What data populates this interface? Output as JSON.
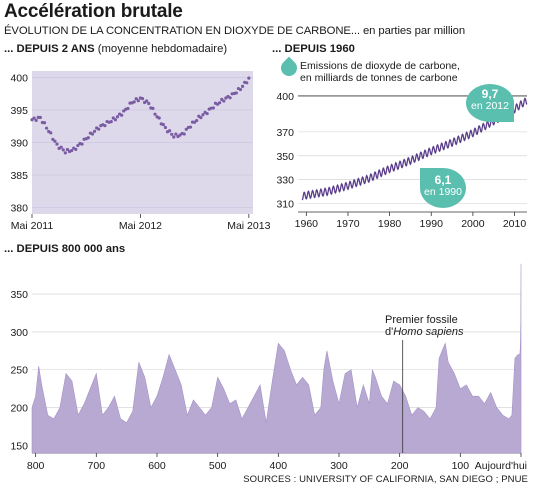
{
  "header": {
    "title": "Accélération brutale",
    "subtitle": "ÉVOLUTION DE LA CONCENTRATION EN DIOXYDE DE CARBONE... en parties par million"
  },
  "panels": {
    "p1": {
      "heading_bold": "... DEPUIS 2 ANS",
      "heading_rest": " (moyenne hebdomadaire)"
    },
    "p2": {
      "heading_bold": "... DEPUIS 1960",
      "legend_line1": "Emissions de dioxyde de carbone,",
      "legend_line2": "en milliards de tonnes de carbone",
      "bubble_2012_value": "9,7",
      "bubble_2012_label": "en 2012",
      "bubble_1990_value": "6,1",
      "bubble_1990_label": "en 1990"
    },
    "p3": {
      "heading_bold": "... DEPUIS 800 000 ans",
      "annotation_line1": "Premier fossile",
      "annotation_line2": "d'Homo sapiens"
    }
  },
  "footer": {
    "sources": "SOURCES : UNIVERSITY OF CALIFORNIA, SAN DIEGO ; PNUE"
  },
  "colors": {
    "fill": "#ddd8ea",
    "dots": "#7a5ca3",
    "keeling": "#5a3d8a",
    "area": "#b8a9d3",
    "teal": "#5bbfb0"
  },
  "chart_data": [
    {
      "type": "scatter",
      "title": "... DEPUIS 2 ANS (moyenne hebdomadaire)",
      "x_tick_labels": [
        "Mai 2011",
        "Mai 2012",
        "Mai 2013"
      ],
      "y_ticks": [
        380,
        385,
        390,
        395,
        400
      ],
      "ylim": [
        379,
        401
      ],
      "x_unit": "weeks since May 2011",
      "xlim": [
        0,
        106
      ],
      "x": [
        0,
        4,
        8,
        12,
        16,
        20,
        24,
        28,
        32,
        36,
        40,
        44,
        48,
        52,
        56,
        60,
        64,
        68,
        72,
        76,
        80,
        84,
        88,
        92,
        96,
        100,
        104
      ],
      "values": [
        393.5,
        393.8,
        391.8,
        389.6,
        388.6,
        388.9,
        390.0,
        391.2,
        392.3,
        393.0,
        393.7,
        394.7,
        396.2,
        396.8,
        396.0,
        394.0,
        392.2,
        391.0,
        391.2,
        392.6,
        393.8,
        394.7,
        395.8,
        396.6,
        397.3,
        398.3,
        399.8
      ]
    },
    {
      "type": "line",
      "title": "... DEPUIS 1960",
      "x_ticks": [
        1960,
        1970,
        1980,
        1990,
        2000,
        2010
      ],
      "y_ticks": [
        310,
        330,
        350,
        370,
        400
      ],
      "xlim": [
        1958,
        2013
      ],
      "ylim": [
        303,
        405
      ],
      "x": [
        1959,
        1960,
        1965,
        1970,
        1975,
        1980,
        1985,
        1990,
        1995,
        2000,
        2005,
        2010,
        2012,
        2013
      ],
      "values": [
        316,
        317,
        320,
        325,
        331,
        339,
        346,
        354,
        361,
        369,
        379,
        389,
        394,
        396
      ],
      "seasonal_amplitude_ppm": 3,
      "annotations": [
        {
          "year": 2012,
          "emissions_GtC": 9.7
        },
        {
          "year": 1990,
          "emissions_GtC": 6.1
        }
      ]
    },
    {
      "type": "area",
      "title": "... DEPUIS 800 000 ans",
      "x_ticks": [
        "800",
        "700",
        "600",
        "500",
        "400",
        "300",
        "200",
        "100",
        "Aujourd'hui"
      ],
      "x_unit": "thousand years before present",
      "xlim": [
        806,
        0
      ],
      "y_ticks": [
        150,
        200,
        250,
        300,
        350
      ],
      "ylim": [
        140,
        395
      ],
      "x": [
        806,
        800,
        795,
        790,
        780,
        770,
        760,
        750,
        740,
        730,
        720,
        710,
        700,
        690,
        680,
        670,
        660,
        650,
        640,
        630,
        620,
        610,
        600,
        590,
        580,
        570,
        560,
        550,
        540,
        530,
        520,
        510,
        500,
        490,
        480,
        470,
        460,
        450,
        440,
        430,
        420,
        410,
        400,
        390,
        380,
        370,
        360,
        350,
        340,
        330,
        325,
        320,
        310,
        300,
        290,
        280,
        270,
        260,
        250,
        245,
        240,
        230,
        220,
        210,
        200,
        190,
        180,
        170,
        160,
        150,
        140,
        135,
        130,
        125,
        120,
        110,
        100,
        90,
        80,
        70,
        60,
        50,
        40,
        30,
        20,
        15,
        10,
        5,
        2,
        1,
        0.3,
        0
      ],
      "values": [
        200,
        215,
        255,
        230,
        190,
        185,
        200,
        245,
        235,
        190,
        205,
        225,
        245,
        190,
        200,
        215,
        185,
        180,
        195,
        260,
        240,
        200,
        215,
        240,
        270,
        250,
        230,
        190,
        210,
        200,
        190,
        200,
        240,
        225,
        205,
        210,
        185,
        200,
        215,
        230,
        180,
        235,
        285,
        275,
        250,
        230,
        240,
        230,
        190,
        200,
        250,
        275,
        235,
        205,
        245,
        250,
        200,
        230,
        205,
        250,
        240,
        215,
        205,
        235,
        230,
        215,
        190,
        200,
        195,
        185,
        200,
        265,
        275,
        285,
        260,
        245,
        225,
        230,
        215,
        215,
        205,
        220,
        200,
        190,
        185,
        190,
        265,
        270,
        270,
        280,
        315,
        390
      ],
      "annotation": {
        "x": 195,
        "label": "Premier fossile d'Homo sapiens"
      }
    }
  ]
}
